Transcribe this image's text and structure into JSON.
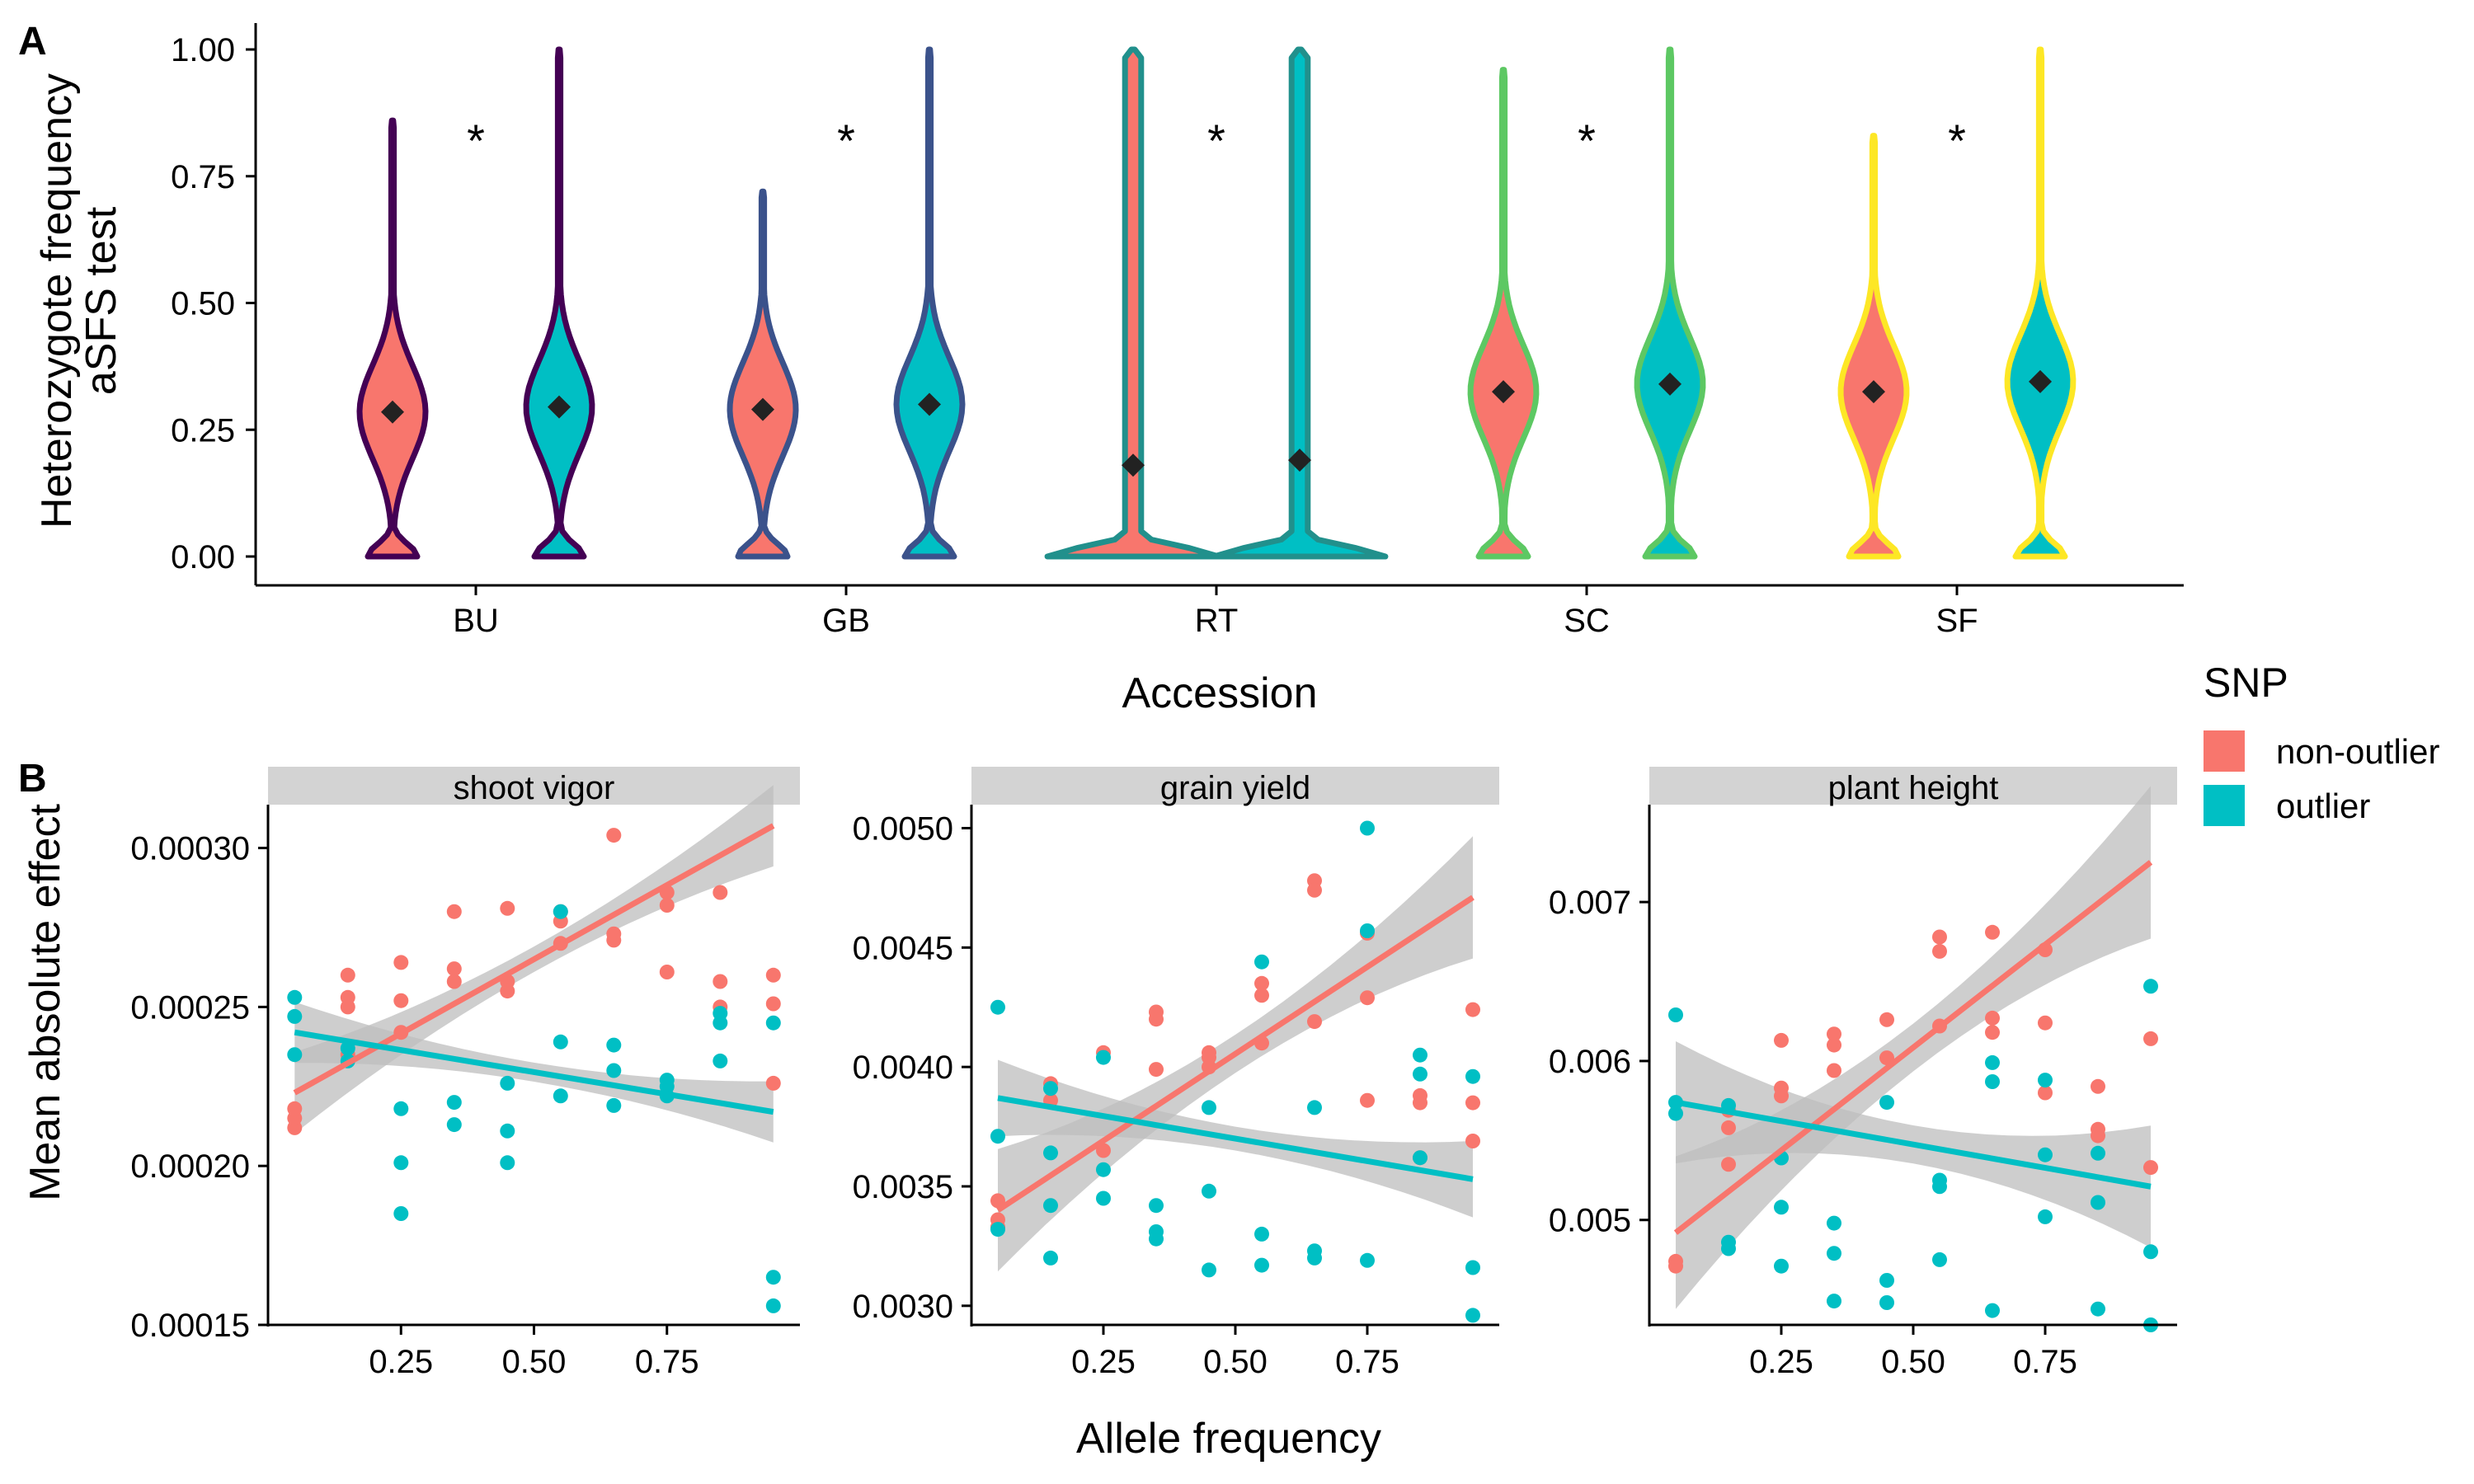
{
  "panel_labels": {
    "a": "A",
    "b": "B"
  },
  "colors": {
    "non_outlier": "#F8766D",
    "outlier": "#00BFC4",
    "ci_band": "#BEBEBE",
    "strip": "#D3D3D3",
    "mean_marker": "#222222"
  },
  "legend": {
    "title": "SNP",
    "items": [
      "non-outlier",
      "outlier"
    ]
  },
  "chart_data": [
    {
      "type": "violin",
      "ylabel_line1": "Heterozygote frequency",
      "ylabel_line2": "aSFS test",
      "xlabel": "Accession",
      "ylim": [
        0,
        1
      ],
      "yticks": [
        "0.00",
        "0.25",
        "0.50",
        "0.75",
        "1.00"
      ],
      "categories": [
        "BU",
        "GB",
        "RT",
        "SC",
        "SF"
      ],
      "accession_colors": [
        "#440154",
        "#3B528B",
        "#21908C",
        "#5DC863",
        "#FDE725"
      ],
      "significance": [
        "*",
        "*",
        "*",
        "*",
        "*"
      ],
      "series": [
        {
          "name": "non-outlier",
          "max": [
            0.86,
            0.72,
            1.0,
            0.96,
            0.83
          ],
          "mean": [
            0.285,
            0.29,
            0.18,
            0.325,
            0.325
          ]
        },
        {
          "name": "outlier",
          "max": [
            1.0,
            1.0,
            1.0,
            1.0,
            1.0
          ],
          "mean": [
            0.295,
            0.3,
            0.19,
            0.34,
            0.345
          ]
        }
      ]
    },
    {
      "type": "scatter",
      "facet": "shoot vigor",
      "xlabel": "Allele frequency",
      "ylabel": "Mean absolute effect",
      "xlim": [
        0.05,
        0.95
      ],
      "xticks": [
        "0.25",
        "0.50",
        "0.75"
      ],
      "ylim": [
        0.00015,
        0.00031
      ],
      "yticks": [
        "0.00015",
        "0.00020",
        "0.00025",
        "0.00030"
      ],
      "series": [
        {
          "name": "non-outlier",
          "points": [
            [
              0.05,
              0.000212
            ],
            [
              0.05,
              0.000215
            ],
            [
              0.05,
              0.000218
            ],
            [
              0.15,
              0.00026
            ],
            [
              0.15,
              0.000253
            ],
            [
              0.15,
              0.00025
            ],
            [
              0.15,
              0.000235
            ],
            [
              0.25,
              0.000264
            ],
            [
              0.25,
              0.000252
            ],
            [
              0.25,
              0.000242
            ],
            [
              0.35,
              0.00028
            ],
            [
              0.35,
              0.000262
            ],
            [
              0.35,
              0.000258
            ],
            [
              0.45,
              0.000281
            ],
            [
              0.45,
              0.000258
            ],
            [
              0.45,
              0.000255
            ],
            [
              0.55,
              0.000277
            ],
            [
              0.55,
              0.00027
            ],
            [
              0.55,
              0.00028
            ],
            [
              0.65,
              0.000304
            ],
            [
              0.65,
              0.000273
            ],
            [
              0.65,
              0.000271
            ],
            [
              0.75,
              0.000286
            ],
            [
              0.75,
              0.000282
            ],
            [
              0.75,
              0.000261
            ],
            [
              0.85,
              0.000286
            ],
            [
              0.85,
              0.000258
            ],
            [
              0.85,
              0.00025
            ],
            [
              0.95,
              0.00026
            ],
            [
              0.95,
              0.000251
            ],
            [
              0.95,
              0.000226
            ]
          ],
          "fit": [
            [
              0.05,
              0.000223
            ],
            [
              0.95,
              0.000307
            ]
          ],
          "ci": 4e-06
        },
        {
          "name": "outlier",
          "points": [
            [
              0.05,
              0.000253
            ],
            [
              0.05,
              0.000247
            ],
            [
              0.05,
              0.000235
            ],
            [
              0.15,
              0.000233
            ],
            [
              0.15,
              0.000237
            ],
            [
              0.25,
              0.000218
            ],
            [
              0.25,
              0.000201
            ],
            [
              0.25,
              0.000185
            ],
            [
              0.35,
              0.00022
            ],
            [
              0.35,
              0.000213
            ],
            [
              0.45,
              0.000226
            ],
            [
              0.45,
              0.000211
            ],
            [
              0.45,
              0.000201
            ],
            [
              0.55,
              0.00028
            ],
            [
              0.55,
              0.000239
            ],
            [
              0.55,
              0.000222
            ],
            [
              0.65,
              0.000238
            ],
            [
              0.65,
              0.00023
            ],
            [
              0.65,
              0.000219
            ],
            [
              0.75,
              0.000227
            ],
            [
              0.75,
              0.000225
            ],
            [
              0.75,
              0.000222
            ],
            [
              0.85,
              0.000248
            ],
            [
              0.85,
              0.000245
            ],
            [
              0.85,
              0.000233
            ],
            [
              0.95,
              0.000245
            ],
            [
              0.95,
              0.000165
            ],
            [
              0.95,
              0.000156
            ]
          ],
          "fit": [
            [
              0.05,
              0.000242
            ],
            [
              0.95,
              0.000217
            ]
          ],
          "ci": 3e-06
        }
      ]
    },
    {
      "type": "scatter",
      "facet": "grain yield",
      "xlabel": "Allele frequency",
      "ylabel": "",
      "xlim": [
        0.05,
        0.95
      ],
      "xticks": [
        "0.25",
        "0.50",
        "0.75"
      ],
      "ylim": [
        0.00292,
        0.00505
      ],
      "yticks": [
        "0.0030",
        "0.0035",
        "0.0040",
        "0.0045",
        "0.0050"
      ],
      "series": [
        {
          "name": "non-outlier",
          "points": [
            [
              0.05,
              0.00344
            ],
            [
              0.05,
              0.00336
            ],
            [
              0.05,
              0.00333
            ],
            [
              0.15,
              0.00393
            ],
            [
              0.15,
              0.00386
            ],
            [
              0.25,
              0.00406
            ],
            [
              0.25,
              0.00365
            ],
            [
              0.35,
              0.00423
            ],
            [
              0.35,
              0.0042
            ],
            [
              0.35,
              0.00399
            ],
            [
              0.45,
              0.00406
            ],
            [
              0.45,
              0.00404
            ],
            [
              0.45,
              0.004
            ],
            [
              0.55,
              0.00435
            ],
            [
              0.55,
              0.0043
            ],
            [
              0.55,
              0.0041
            ],
            [
              0.65,
              0.00478
            ],
            [
              0.65,
              0.00474
            ],
            [
              0.65,
              0.00419
            ],
            [
              0.75,
              0.00456
            ],
            [
              0.75,
              0.00429
            ],
            [
              0.75,
              0.00386
            ],
            [
              0.85,
              0.00388
            ],
            [
              0.85,
              0.00385
            ],
            [
              0.85,
              0.00362
            ],
            [
              0.95,
              0.00424
            ],
            [
              0.95,
              0.00385
            ],
            [
              0.95,
              0.00369
            ]
          ],
          "fit": [
            [
              0.05,
              0.0034
            ],
            [
              0.95,
              0.00471
            ]
          ],
          "ci": 8e-05
        },
        {
          "name": "outlier",
          "points": [
            [
              0.05,
              0.00425
            ],
            [
              0.05,
              0.00371
            ],
            [
              0.05,
              0.00332
            ],
            [
              0.15,
              0.00391
            ],
            [
              0.15,
              0.00364
            ],
            [
              0.15,
              0.00342
            ],
            [
              0.15,
              0.0032
            ],
            [
              0.25,
              0.00404
            ],
            [
              0.25,
              0.00357
            ],
            [
              0.25,
              0.00345
            ],
            [
              0.35,
              0.00342
            ],
            [
              0.35,
              0.00331
            ],
            [
              0.35,
              0.00328
            ],
            [
              0.45,
              0.00383
            ],
            [
              0.45,
              0.00348
            ],
            [
              0.45,
              0.00315
            ],
            [
              0.55,
              0.00444
            ],
            [
              0.55,
              0.0033
            ],
            [
              0.55,
              0.00317
            ],
            [
              0.65,
              0.00383
            ],
            [
              0.65,
              0.00323
            ],
            [
              0.65,
              0.0032
            ],
            [
              0.75,
              0.005
            ],
            [
              0.75,
              0.00457
            ],
            [
              0.75,
              0.00319
            ],
            [
              0.85,
              0.00405
            ],
            [
              0.85,
              0.00397
            ],
            [
              0.85,
              0.00362
            ],
            [
              0.95,
              0.00396
            ],
            [
              0.95,
              0.00316
            ],
            [
              0.95,
              0.00296
            ]
          ],
          "fit": [
            [
              0.05,
              0.00387
            ],
            [
              0.95,
              0.00353
            ]
          ],
          "ci": 5e-05
        }
      ]
    },
    {
      "type": "scatter",
      "facet": "plant height",
      "xlabel": "Allele frequency",
      "ylabel": "",
      "xlim": [
        0.05,
        0.95
      ],
      "xticks": [
        "0.25",
        "0.50",
        "0.75"
      ],
      "ylim": [
        0.00434,
        0.00754
      ],
      "yticks": [
        "0.005",
        "0.006",
        "0.007"
      ],
      "series": [
        {
          "name": "non-outlier",
          "points": [
            [
              0.05,
              0.00474
            ],
            [
              0.05,
              0.00471
            ],
            [
              0.15,
              0.00569
            ],
            [
              0.15,
              0.00558
            ],
            [
              0.15,
              0.00535
            ],
            [
              0.25,
              0.00613
            ],
            [
              0.25,
              0.00583
            ],
            [
              0.25,
              0.00578
            ],
            [
              0.35,
              0.00617
            ],
            [
              0.35,
              0.0061
            ],
            [
              0.35,
              0.00594
            ],
            [
              0.45,
              0.00626
            ],
            [
              0.45,
              0.00602
            ],
            [
              0.55,
              0.00678
            ],
            [
              0.55,
              0.00669
            ],
            [
              0.55,
              0.00622
            ],
            [
              0.65,
              0.00681
            ],
            [
              0.65,
              0.00627
            ],
            [
              0.65,
              0.00618
            ],
            [
              0.75,
              0.0067
            ],
            [
              0.75,
              0.00624
            ],
            [
              0.75,
              0.0058
            ],
            [
              0.85,
              0.00584
            ],
            [
              0.85,
              0.00557
            ],
            [
              0.85,
              0.00553
            ],
            [
              0.95,
              0.00614
            ],
            [
              0.95,
              0.00533
            ]
          ],
          "fit": [
            [
              0.05,
              0.00492
            ],
            [
              0.95,
              0.00725
            ]
          ],
          "ci": 0.00015
        },
        {
          "name": "outlier",
          "points": [
            [
              0.05,
              0.00629
            ],
            [
              0.05,
              0.00574
            ],
            [
              0.05,
              0.00567
            ],
            [
              0.15,
              0.00572
            ],
            [
              0.15,
              0.00486
            ],
            [
              0.15,
              0.00482
            ],
            [
              0.25,
              0.00539
            ],
            [
              0.25,
              0.00508
            ],
            [
              0.25,
              0.00471
            ],
            [
              0.35,
              0.00498
            ],
            [
              0.35,
              0.00479
            ],
            [
              0.35,
              0.00449
            ],
            [
              0.45,
              0.00574
            ],
            [
              0.45,
              0.00462
            ],
            [
              0.45,
              0.00448
            ],
            [
              0.55,
              0.00525
            ],
            [
              0.55,
              0.00521
            ],
            [
              0.55,
              0.00475
            ],
            [
              0.65,
              0.00599
            ],
            [
              0.65,
              0.00587
            ],
            [
              0.65,
              0.00443
            ],
            [
              0.75,
              0.00588
            ],
            [
              0.75,
              0.00541
            ],
            [
              0.75,
              0.00502
            ],
            [
              0.85,
              0.00542
            ],
            [
              0.85,
              0.00511
            ],
            [
              0.85,
              0.00444
            ],
            [
              0.95,
              0.00647
            ],
            [
              0.95,
              0.0048
            ],
            [
              0.95,
              0.00434
            ]
          ],
          "fit": [
            [
              0.05,
              0.00574
            ],
            [
              0.95,
              0.00521
            ]
          ],
          "ci": 0.00012
        }
      ]
    }
  ]
}
